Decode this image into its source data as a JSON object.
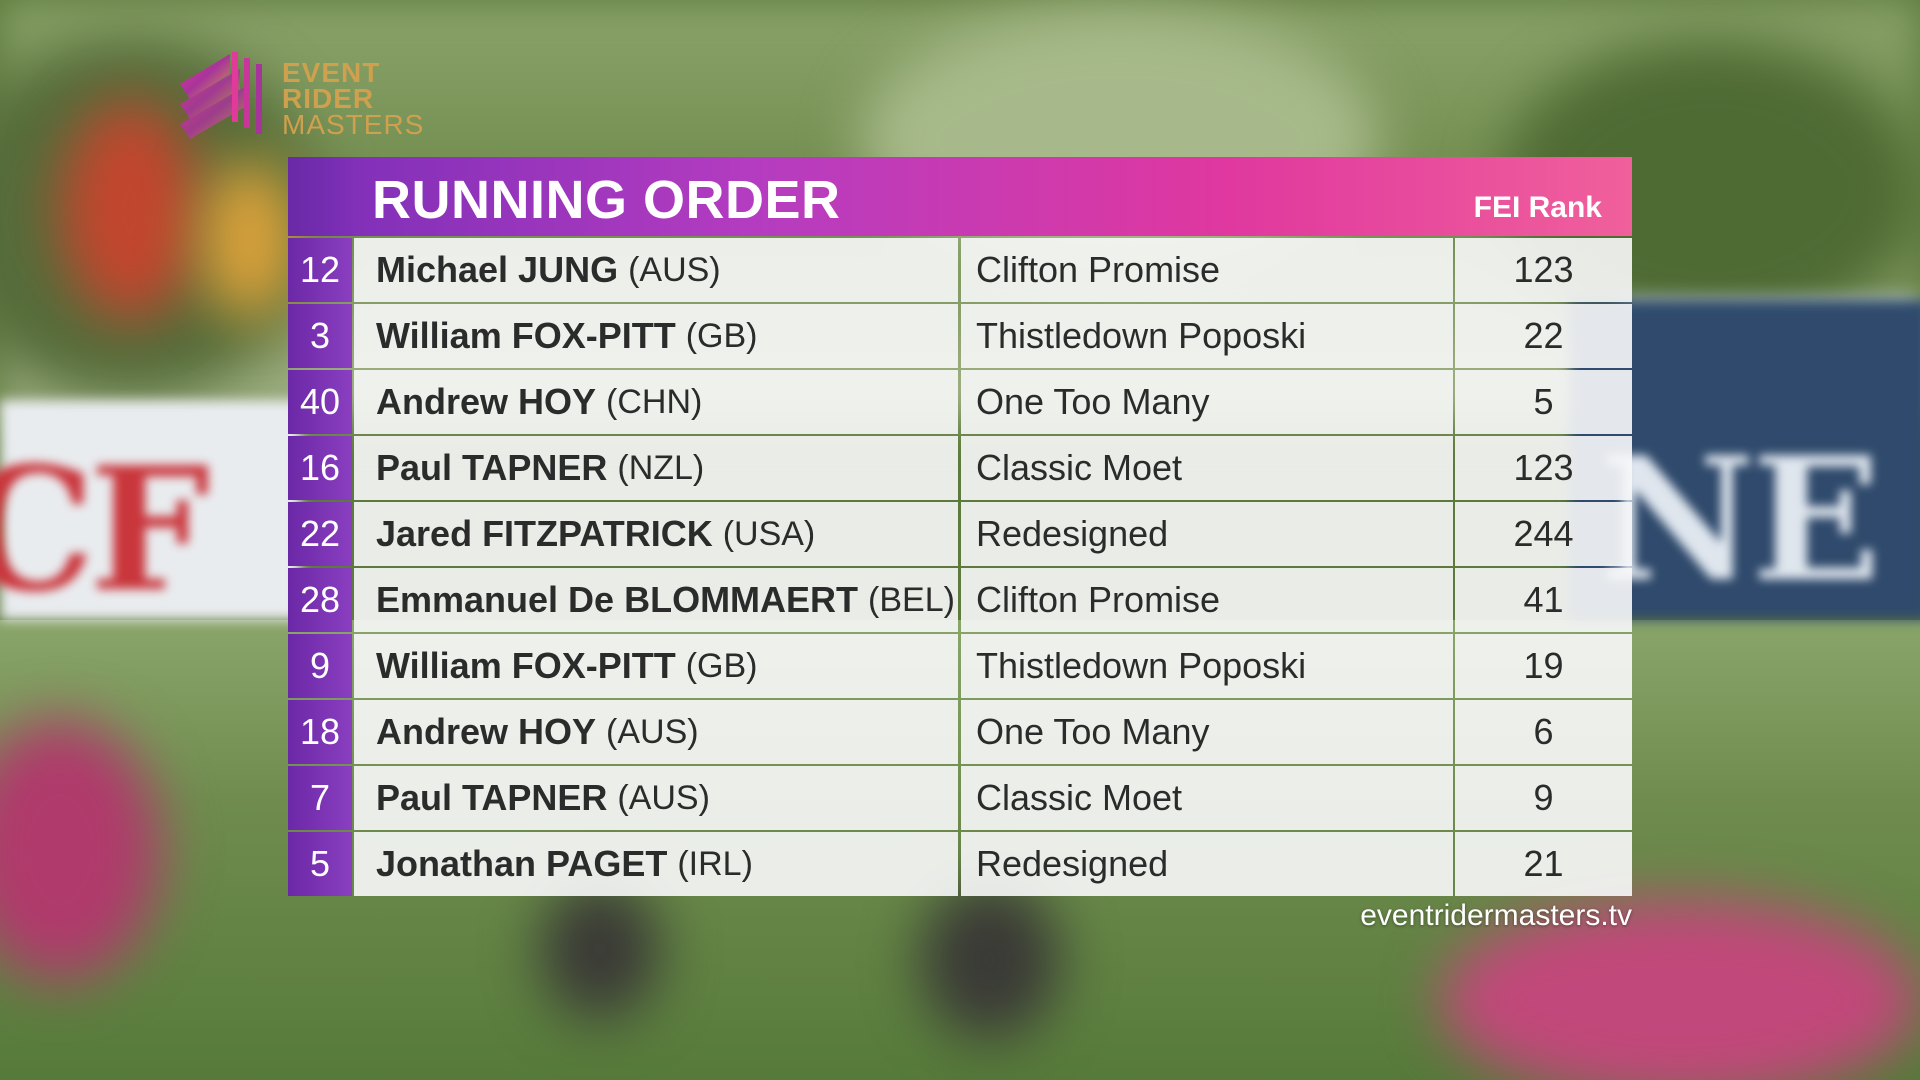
{
  "brand": {
    "line1": "EVENT",
    "line2": "RIDER",
    "line3": "MASTERS",
    "accent_gold": "#cfa04d",
    "accent_purple": "#7a2eb8",
    "accent_pink": "#e0389f"
  },
  "panel": {
    "title": "RUNNING ORDER",
    "rank_label": "FEI Rank"
  },
  "rows": [
    {
      "number": "12",
      "rider": "Michael JUNG",
      "country": "(AUS)",
      "horse": "Clifton Promise",
      "rank": "123"
    },
    {
      "number": "3",
      "rider": "William FOX-PITT",
      "country": "(GB)",
      "horse": "Thistledown Poposki",
      "rank": "22"
    },
    {
      "number": "40",
      "rider": "Andrew HOY",
      "country": "(CHN)",
      "horse": "One Too Many",
      "rank": "5"
    },
    {
      "number": "16",
      "rider": "Paul TAPNER",
      "country": "(NZL)",
      "horse": "Classic Moet",
      "rank": "123"
    },
    {
      "number": "22",
      "rider": "Jared FITZPATRICK",
      "country": "(USA)",
      "horse": "Redesigned",
      "rank": "244"
    },
    {
      "number": "28",
      "rider": "Emmanuel De BLOMMAERT",
      "country": "(BEL)",
      "horse": "Clifton Promise",
      "rank": "41"
    },
    {
      "number": "9",
      "rider": "William FOX-PITT",
      "country": "(GB)",
      "horse": "Thistledown Poposki",
      "rank": "19"
    },
    {
      "number": "18",
      "rider": "Andrew HOY",
      "country": "(AUS)",
      "horse": "One Too Many",
      "rank": "6"
    },
    {
      "number": "7",
      "rider": "Paul TAPNER",
      "country": "(AUS)",
      "horse": "Classic Moet",
      "rank": "9"
    },
    {
      "number": "5",
      "rider": "Jonathan PAGET",
      "country": "(IRL)",
      "horse": "Redesigned",
      "rank": "21"
    }
  ],
  "footer": {
    "url": "eventridermasters.tv"
  }
}
